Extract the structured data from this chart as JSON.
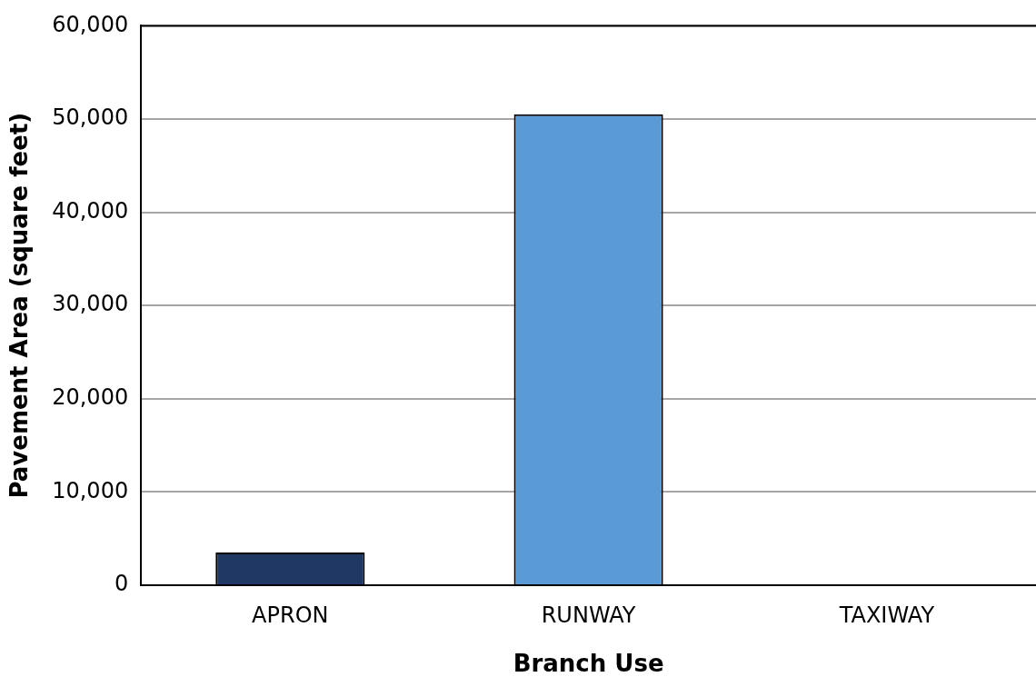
{
  "chart_data": {
    "type": "bar",
    "xlabel": "Branch Use",
    "ylabel": "Pavement Area (square feet)",
    "categories": [
      "APRON",
      "RUNWAY",
      "TAXIWAY"
    ],
    "values": [
      3500,
      50500,
      0
    ],
    "colors": [
      "#203864",
      "#5b9bd5",
      "#5b9bd5"
    ],
    "ylim": [
      0,
      60000
    ],
    "yticks": [
      0,
      {
        "value": 10000,
        "label": "10,000"
      },
      {
        "value": 20000,
        "label": "20,000"
      },
      {
        "value": 30000,
        "label": "30,000"
      },
      {
        "value": 40000,
        "label": "40,000"
      },
      {
        "value": 50000,
        "label": "50,000"
      },
      {
        "value": 60000,
        "label": "60,000"
      }
    ],
    "grid": "y"
  }
}
